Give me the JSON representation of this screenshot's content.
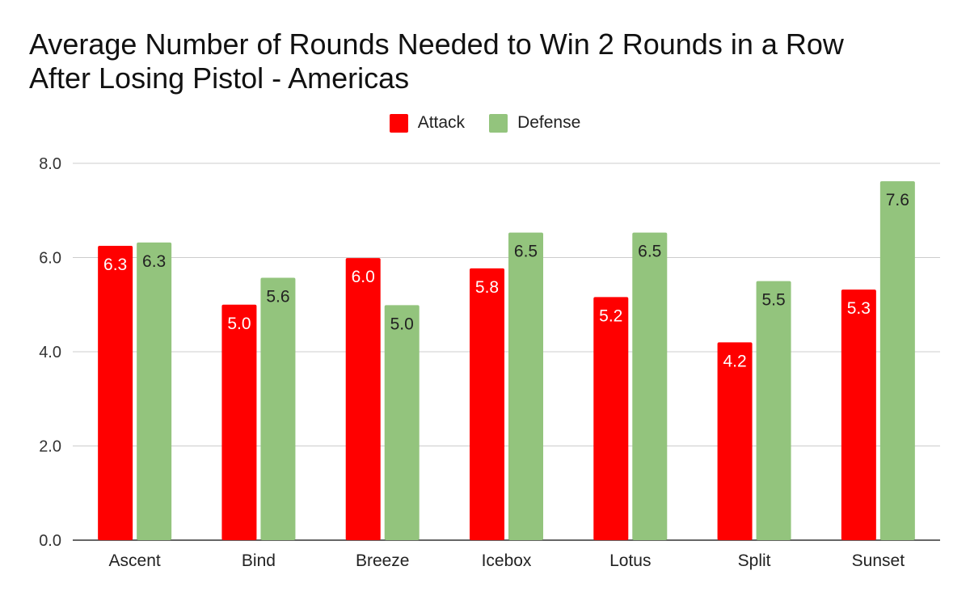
{
  "chart_data": {
    "type": "bar",
    "title_lines": [
      "Average Number of Rounds Needed to Win 2 Rounds in a Row",
      "After Losing Pistol - Americas"
    ],
    "categories": [
      "Ascent",
      "Bind",
      "Breeze",
      "Icebox",
      "Lotus",
      "Split",
      "Sunset"
    ],
    "series": [
      {
        "name": "Attack",
        "color": "#ff0000",
        "label_color": "#ffffff",
        "values": [
          6.25,
          5.0,
          5.99,
          5.77,
          5.16,
          4.2,
          5.32
        ],
        "labels": [
          "6.3",
          "5.0",
          "6.0",
          "5.8",
          "5.2",
          "4.2",
          "5.3"
        ]
      },
      {
        "name": "Defense",
        "color": "#93c47d",
        "label_color": "#222222",
        "values": [
          6.32,
          5.57,
          4.99,
          6.53,
          6.53,
          5.5,
          7.62
        ],
        "labels": [
          "6.3",
          "5.6",
          "5.0",
          "6.5",
          "6.5",
          "5.5",
          "7.6"
        ]
      }
    ],
    "ylim": [
      0,
      8
    ],
    "yticks": [
      "0.0",
      "2.0",
      "4.0",
      "6.0",
      "8.0"
    ],
    "legend_position": "top-center",
    "grid": true
  }
}
